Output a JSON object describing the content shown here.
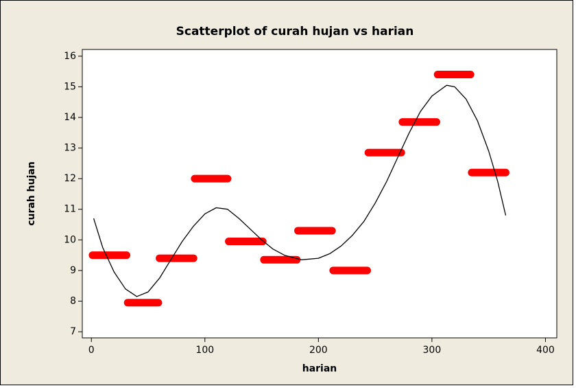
{
  "chart_data": {
    "type": "scatter",
    "title": "Scatterplot of curah hujan vs harian",
    "x_label": "harian",
    "y_label": "curah hujan",
    "x_start": [
      1,
      32,
      60,
      91,
      121,
      152,
      182,
      213,
      244,
      274,
      305,
      335
    ],
    "x_end": [
      31,
      59,
      90,
      120,
      151,
      181,
      212,
      243,
      273,
      304,
      334,
      365
    ],
    "values": [
      9.5,
      7.95,
      9.4,
      12.0,
      9.95,
      9.35,
      10.3,
      9.0,
      12.85,
      13.85,
      15.4,
      12.2
    ],
    "color": "#ff0000",
    "fit": {
      "color": "#000000",
      "x": [
        2,
        10,
        20,
        30,
        40,
        50,
        60,
        70,
        80,
        90,
        100,
        110,
        120,
        130,
        140,
        150,
        160,
        170,
        185,
        200,
        210,
        220,
        230,
        240,
        250,
        260,
        270,
        280,
        290,
        300,
        313,
        320,
        330,
        340,
        350,
        358,
        365
      ],
      "values": [
        10.7,
        9.75,
        8.95,
        8.4,
        8.15,
        8.3,
        8.75,
        9.35,
        9.95,
        10.45,
        10.85,
        11.05,
        11.0,
        10.7,
        10.35,
        10.0,
        9.7,
        9.5,
        9.35,
        9.4,
        9.55,
        9.8,
        10.15,
        10.6,
        11.2,
        11.9,
        12.7,
        13.5,
        14.2,
        14.7,
        15.05,
        15.0,
        14.6,
        13.9,
        12.9,
        11.9,
        10.8
      ]
    },
    "xlim": [
      -8,
      410
    ],
    "ylim": [
      6.8,
      16.22
    ],
    "xticks": [
      0,
      100,
      200,
      300,
      400
    ],
    "yticks": [
      7,
      8,
      9,
      10,
      11,
      12,
      13,
      14,
      15,
      16
    ]
  }
}
